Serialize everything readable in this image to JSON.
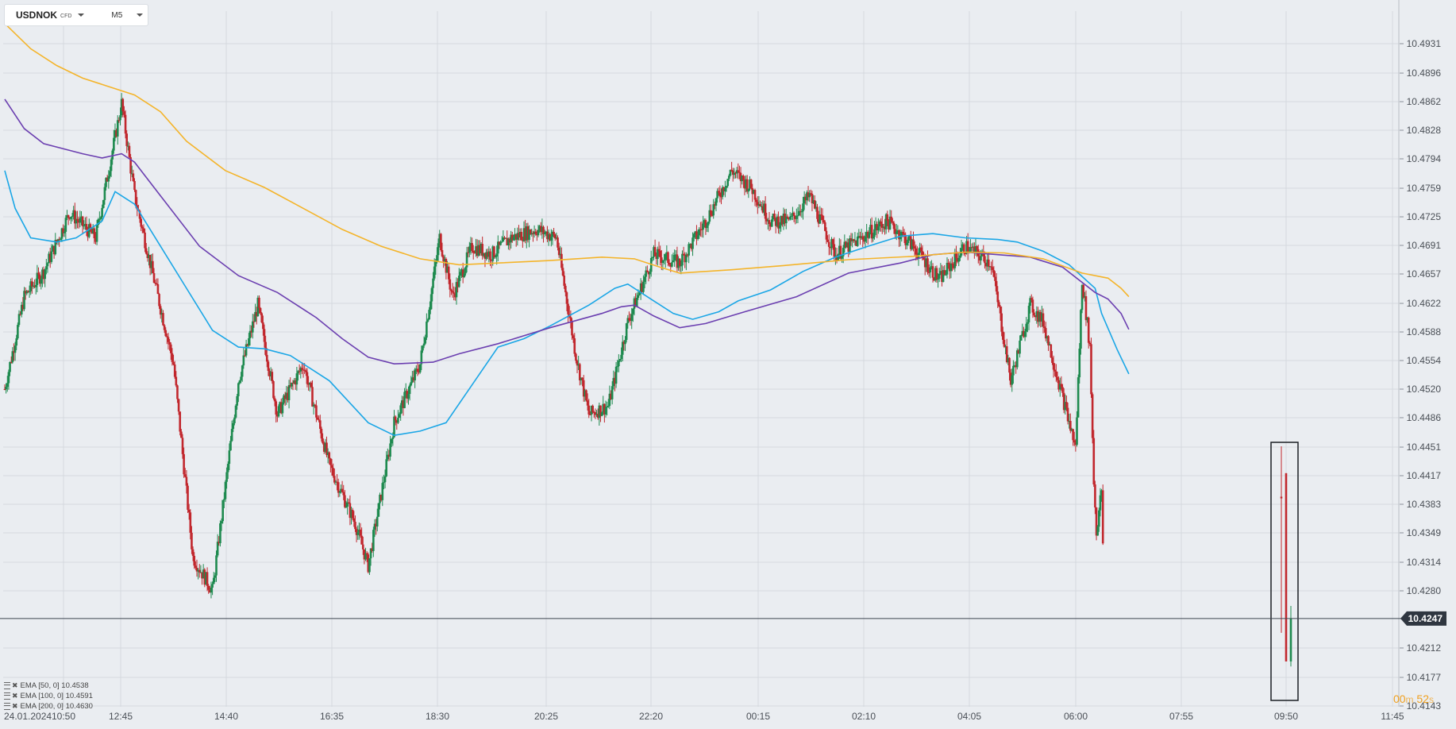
{
  "header": {
    "symbol": "USDNOK",
    "instrument_type": "CFD",
    "timeframe": "M5"
  },
  "indicators": [
    {
      "label": "EMA  [50,  0]  10.4538",
      "color": "#1aa6e6"
    },
    {
      "label": "EMA  [100,  0]  10.4591",
      "color": "#6b3fb0"
    },
    {
      "label": "EMA  [200,  0]  10.4630",
      "color": "#f4b42a"
    }
  ],
  "timer": {
    "minutes": "00",
    "minutes_unit": "m",
    "seconds": "52",
    "seconds_unit": "s"
  },
  "colors": {
    "up": "#1e8a4f",
    "down": "#c1272d",
    "background": "#eaedf1",
    "grid": "#d5d9de",
    "price_line": "#3c4650"
  },
  "chart_data": {
    "type": "candlestick",
    "timeframe": "M5",
    "x_tick_labels": [
      "24.01.2024",
      "10:50",
      "12:45",
      "14:40",
      "16:35",
      "18:30",
      "20:25",
      "22:20",
      "00:15",
      "02:10",
      "04:05",
      "06:00",
      "07:55",
      "09:50",
      "11:45"
    ],
    "y_tick_labels": [
      "10.4931",
      "10.4896",
      "10.4862",
      "10.4828",
      "10.4794",
      "10.4759",
      "10.4725",
      "10.4691",
      "10.4657",
      "10.4622",
      "10.4588",
      "10.4554",
      "10.4520",
      "10.4486",
      "10.4451",
      "10.4417",
      "10.4383",
      "10.4349",
      "10.4314",
      "10.4280",
      "10.4212",
      "10.4177",
      "10.4143"
    ],
    "ylim": [
      10.413,
      10.496
    ],
    "current_price": "10.4247",
    "series": [
      {
        "name": "EMA [50, 0]",
        "color": "#1aa6e6",
        "points": [
          [
            0,
            10.478
          ],
          [
            8,
            10.4735
          ],
          [
            20,
            10.47
          ],
          [
            40,
            10.4695
          ],
          [
            55,
            10.47
          ],
          [
            75,
            10.472
          ],
          [
            85,
            10.4755
          ],
          [
            100,
            10.474
          ],
          [
            120,
            10.469
          ],
          [
            140,
            10.464
          ],
          [
            160,
            10.459
          ],
          [
            180,
            10.457
          ],
          [
            200,
            10.4568
          ],
          [
            220,
            10.456
          ],
          [
            250,
            10.453
          ],
          [
            280,
            10.448
          ],
          [
            300,
            10.4465
          ],
          [
            320,
            10.447
          ],
          [
            340,
            10.448
          ],
          [
            360,
            10.4525
          ],
          [
            380,
            10.457
          ],
          [
            400,
            10.458
          ],
          [
            420,
            10.4595
          ],
          [
            450,
            10.462
          ],
          [
            470,
            10.464
          ],
          [
            480,
            10.4645
          ],
          [
            500,
            10.4625
          ],
          [
            515,
            10.461
          ],
          [
            530,
            10.4603
          ],
          [
            550,
            10.4612
          ],
          [
            565,
            10.4625
          ],
          [
            590,
            10.4638
          ],
          [
            615,
            10.466
          ],
          [
            640,
            10.4677
          ],
          [
            665,
            10.469
          ],
          [
            690,
            10.4702
          ],
          [
            715,
            10.4705
          ],
          [
            740,
            10.47
          ],
          [
            765,
            10.4698
          ],
          [
            780,
            10.4695
          ],
          [
            800,
            10.4684
          ],
          [
            820,
            10.4668
          ],
          [
            840,
            10.464
          ],
          [
            845,
            10.461
          ],
          [
            857,
            10.4567
          ],
          [
            866,
            10.4538
          ]
        ]
      },
      {
        "name": "EMA [100, 0]",
        "color": "#6b3fb0",
        "points": [
          [
            0,
            10.4865
          ],
          [
            15,
            10.483
          ],
          [
            30,
            10.4812
          ],
          [
            60,
            10.48
          ],
          [
            75,
            10.4795
          ],
          [
            90,
            10.48
          ],
          [
            100,
            10.479
          ],
          [
            120,
            10.475
          ],
          [
            150,
            10.469
          ],
          [
            180,
            10.4655
          ],
          [
            210,
            10.4635
          ],
          [
            240,
            10.4605
          ],
          [
            260,
            10.458
          ],
          [
            280,
            10.4558
          ],
          [
            300,
            10.455
          ],
          [
            330,
            10.4552
          ],
          [
            350,
            10.4562
          ],
          [
            380,
            10.4574
          ],
          [
            420,
            10.4593
          ],
          [
            460,
            10.461
          ],
          [
            475,
            10.4618
          ],
          [
            485,
            10.462
          ],
          [
            500,
            10.4607
          ],
          [
            520,
            10.4593
          ],
          [
            540,
            10.4598
          ],
          [
            570,
            10.4612
          ],
          [
            610,
            10.463
          ],
          [
            650,
            10.4658
          ],
          [
            690,
            10.467
          ],
          [
            715,
            10.468
          ],
          [
            740,
            10.4683
          ],
          [
            765,
            10.468
          ],
          [
            790,
            10.4677
          ],
          [
            815,
            10.4665
          ],
          [
            840,
            10.4635
          ],
          [
            850,
            10.4627
          ],
          [
            860,
            10.461
          ],
          [
            866,
            10.4591
          ]
        ]
      },
      {
        "name": "EMA [200, 0]",
        "color": "#f4b42a",
        "points": [
          [
            0,
            10.4955
          ],
          [
            20,
            10.4925
          ],
          [
            40,
            10.4905
          ],
          [
            60,
            10.489
          ],
          [
            80,
            10.488
          ],
          [
            100,
            10.487
          ],
          [
            120,
            10.485
          ],
          [
            140,
            10.4815
          ],
          [
            170,
            10.478
          ],
          [
            200,
            10.476
          ],
          [
            230,
            10.4735
          ],
          [
            260,
            10.471
          ],
          [
            290,
            10.469
          ],
          [
            320,
            10.4675
          ],
          [
            350,
            10.4668
          ],
          [
            380,
            10.467
          ],
          [
            420,
            10.4673
          ],
          [
            460,
            10.4677
          ],
          [
            485,
            10.4675
          ],
          [
            505,
            10.4665
          ],
          [
            520,
            10.4658
          ],
          [
            560,
            10.4662
          ],
          [
            600,
            10.4667
          ],
          [
            650,
            10.4674
          ],
          [
            700,
            10.4678
          ],
          [
            740,
            10.4683
          ],
          [
            770,
            10.4682
          ],
          [
            800,
            10.4675
          ],
          [
            830,
            10.4658
          ],
          [
            850,
            10.4652
          ],
          [
            860,
            10.464
          ],
          [
            866,
            10.463
          ]
        ]
      }
    ]
  }
}
